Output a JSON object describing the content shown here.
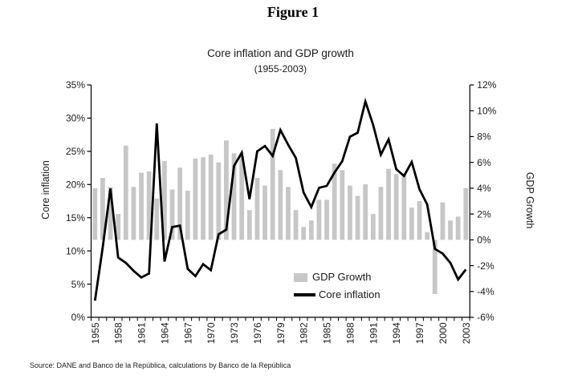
{
  "figure_label": "Figure 1",
  "source_note": "Source: DANE and Banco de la República, calculations by Banco de la República",
  "colors": {
    "bar": "#c7c7c7",
    "line": "#000000",
    "axis": "#000000",
    "text": "#1a1a1a"
  },
  "chart": {
    "title": "Core inflation and GDP growth",
    "subtitle": "(1955-2003)",
    "left_axis": {
      "title": "Core inflation",
      "tick_labels": [
        "0%",
        "5%",
        "10%",
        "15%",
        "20%",
        "25%",
        "30%",
        "35%"
      ]
    },
    "right_axis": {
      "title": "GDP Growth",
      "tick_labels": [
        "-6%",
        "-4%",
        "-2%",
        "0%",
        "2%",
        "4%",
        "6%",
        "8%",
        "10%",
        "12%"
      ]
    },
    "x_axis": {
      "labels": [
        "1955",
        "1958",
        "1961",
        "1964",
        "1967",
        "1970",
        "1973",
        "1976",
        "1979",
        "1982",
        "1985",
        "1988",
        "1991",
        "1994",
        "1997",
        "2000",
        "2003"
      ]
    },
    "legend": [
      {
        "label": "GDP Growth",
        "swatch": "bar"
      },
      {
        "label": "Core inflation",
        "swatch": "line"
      }
    ]
  },
  "chart_data": {
    "type": "combo-bar-line",
    "title": "Core inflation and GDP growth",
    "subtitle": "(1955-2003)",
    "grid": false,
    "legend_position": "inside-lower-right",
    "x": [
      1955,
      1956,
      1957,
      1958,
      1959,
      1960,
      1961,
      1962,
      1963,
      1964,
      1965,
      1966,
      1967,
      1968,
      1969,
      1970,
      1971,
      1972,
      1973,
      1974,
      1975,
      1976,
      1977,
      1978,
      1979,
      1980,
      1981,
      1982,
      1983,
      1984,
      1985,
      1986,
      1987,
      1988,
      1989,
      1990,
      1991,
      1992,
      1993,
      1994,
      1995,
      1996,
      1997,
      1998,
      1999,
      2000,
      2001,
      2002,
      2003
    ],
    "x_tick_label_interval": 3,
    "left_axis": {
      "label": "Core inflation",
      "min": 0,
      "max": 35,
      "tick_step": 5,
      "unit": "%"
    },
    "right_axis": {
      "label": "GDP Growth",
      "min": -6,
      "max": 12,
      "tick_step": 2,
      "unit": "%"
    },
    "series": [
      {
        "name": "GDP Growth",
        "type": "bar",
        "axis": "right",
        "color": "#c7c7c7",
        "values": [
          4.0,
          4.8,
          4.1,
          2.0,
          7.3,
          4.1,
          5.2,
          5.3,
          3.2,
          6.1,
          3.9,
          5.6,
          3.8,
          6.3,
          6.4,
          6.6,
          6.0,
          7.7,
          6.7,
          6.5,
          2.3,
          4.8,
          4.2,
          8.6,
          5.4,
          4.1,
          2.3,
          1.0,
          1.5,
          3.1,
          3.1,
          5.9,
          5.4,
          4.2,
          3.4,
          4.3,
          2.0,
          4.1,
          5.5,
          5.1,
          5.0,
          2.5,
          3.0,
          0.6,
          -4.2,
          2.9,
          1.5,
          1.8,
          4.0
        ]
      },
      {
        "name": "Core inflation",
        "type": "line",
        "axis": "left",
        "color": "#000000",
        "values": [
          2.5,
          10.5,
          19.4,
          9.0,
          8.2,
          7.0,
          6.0,
          6.6,
          29.2,
          8.4,
          13.6,
          13.8,
          7.3,
          6.2,
          8.0,
          7.1,
          12.5,
          13.2,
          22.8,
          24.8,
          17.8,
          25.0,
          25.8,
          24.3,
          28.2,
          26.0,
          24.0,
          18.8,
          16.6,
          19.5,
          19.8,
          21.8,
          23.5,
          27.2,
          27.8,
          32.5,
          29.0,
          24.5,
          26.8,
          22.3,
          21.3,
          23.4,
          19.3,
          17.0,
          10.3,
          9.6,
          8.2,
          5.7,
          7.2
        ]
      }
    ]
  }
}
